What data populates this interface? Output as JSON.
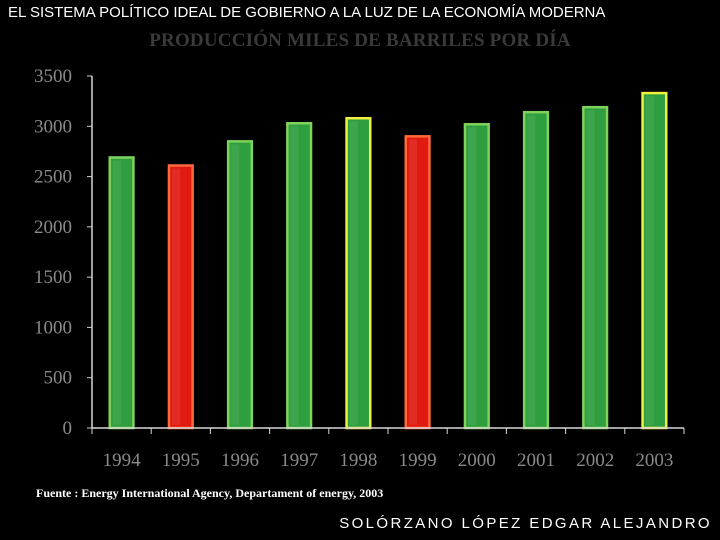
{
  "header": {
    "title": "EL SISTEMA POLÍTICO IDEAL DE GOBIERNO A LA LUZ DE LA ECONOMÍA MODERNA"
  },
  "chart_data": {
    "type": "bar",
    "title": "PRODUCCIÓN MILES DE BARRILES POR DÍA",
    "xlabel": "",
    "ylabel": "",
    "ylim": [
      0,
      3500
    ],
    "yticks": [
      "0",
      "500",
      "1000",
      "1500",
      "2000",
      "2500",
      "3000",
      "3500"
    ],
    "categories": [
      "1994",
      "1995",
      "1996",
      "1997",
      "1998",
      "1999",
      "2000",
      "2001",
      "2002",
      "2003"
    ],
    "values": [
      2690,
      2610,
      2850,
      3030,
      3080,
      2900,
      3020,
      3140,
      3190,
      3330
    ],
    "bar_colors": [
      "#2e9e3e",
      "#e01a10",
      "#2e9e3e",
      "#2e9e3e",
      "#2e9e3e",
      "#e01a10",
      "#2e9e3e",
      "#2e9e3e",
      "#2e9e3e",
      "#2e9e3e"
    ],
    "bar_borders": [
      "#7fd35a",
      "#ff6a3a",
      "#7fd35a",
      "#7fd35a",
      "#f0f040",
      "#ff6a3a",
      "#7fd35a",
      "#7fd35a",
      "#7fd35a",
      "#f0f040"
    ],
    "grid": false,
    "legend": "none"
  },
  "footer": {
    "source": "Fuente : Energy International Agency, Departament of energy, 2003",
    "author": "SOLÓRZANO LÓPEZ EDGAR ALEJANDRO"
  }
}
